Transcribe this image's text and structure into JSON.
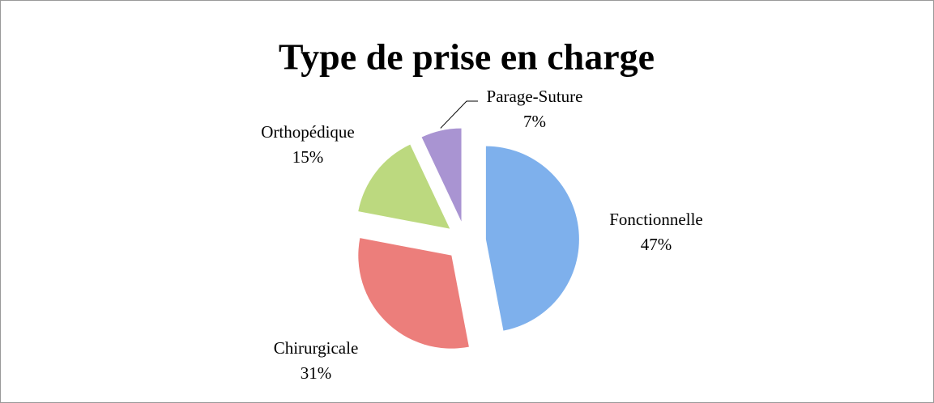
{
  "chart_data": {
    "type": "pie",
    "title": "Type de prise en charge",
    "categories": [
      "Fonctionnelle",
      "Chirurgicale",
      "Orthopédique",
      "Parage-Suture"
    ],
    "values": [
      47,
      31,
      15,
      7
    ],
    "value_labels": [
      "47%",
      "31%",
      "15%",
      "7%"
    ],
    "colors": [
      "#7eb0ec",
      "#ec7e7b",
      "#bcd97f",
      "#a994d2"
    ],
    "exploded": true
  }
}
